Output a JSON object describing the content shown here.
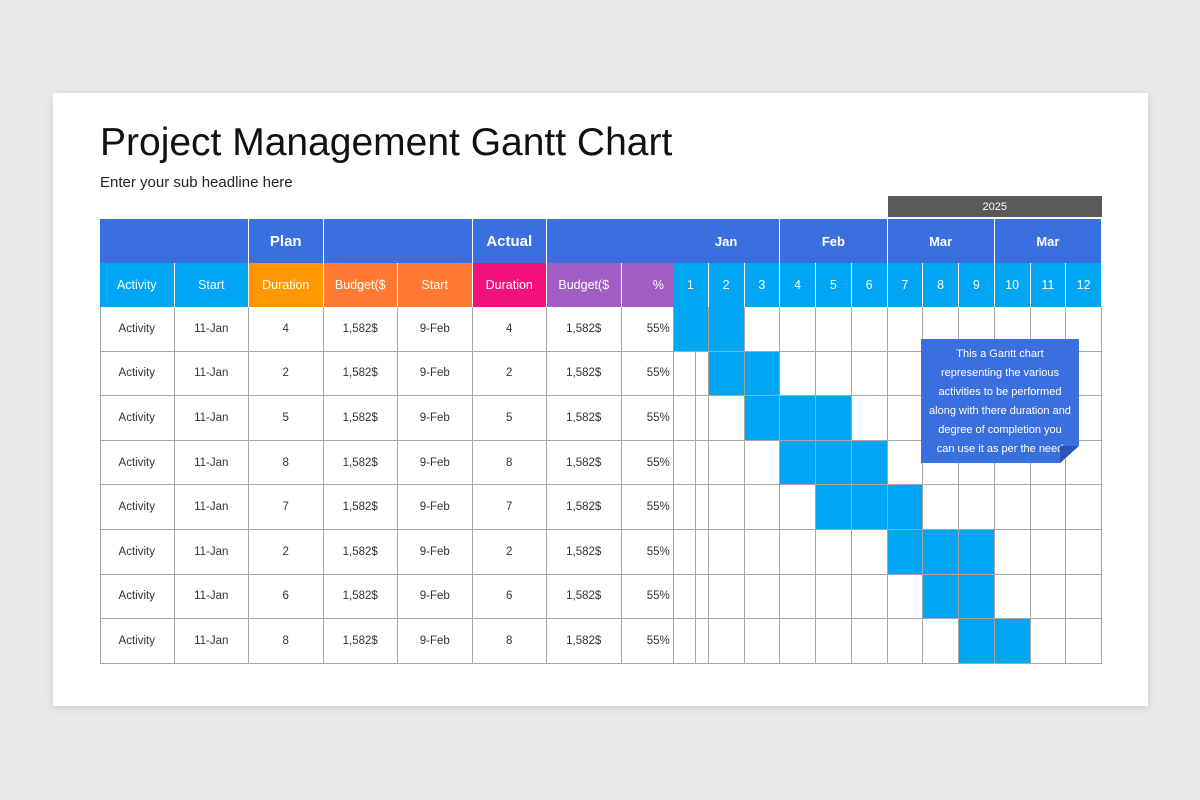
{
  "slide": {
    "title": "Project Management Gantt Chart",
    "subtitle": "Enter your sub headline here"
  },
  "table": {
    "group_headers": {
      "plan": "Plan",
      "actual": "Actual"
    },
    "columns": [
      {
        "label": "Activity",
        "color": "#00a5f3"
      },
      {
        "label": "Start",
        "color": "#00a5f3"
      },
      {
        "label": "Duration",
        "color": "#ff9800"
      },
      {
        "label": "Budget($",
        "color": "#ff7a33"
      },
      {
        "label": "Start",
        "color": "#ff7a33"
      },
      {
        "label": "Duration",
        "color": "#f2117c"
      },
      {
        "label": "Budget($",
        "color": "#a05dc2"
      },
      {
        "label": "%",
        "color": "#a05dc2"
      }
    ],
    "rows": [
      [
        "Activity",
        "11-Jan",
        "4",
        "1,582$",
        "9-Feb",
        "4",
        "1,582$",
        "55%"
      ],
      [
        "Activity",
        "11-Jan",
        "2",
        "1,582$",
        "9-Feb",
        "2",
        "1,582$",
        "55%"
      ],
      [
        "Activity",
        "11-Jan",
        "5",
        "1,582$",
        "9-Feb",
        "5",
        "1,582$",
        "55%"
      ],
      [
        "Activity",
        "11-Jan",
        "8",
        "1,582$",
        "9-Feb",
        "8",
        "1,582$",
        "55%"
      ],
      [
        "Activity",
        "11-Jan",
        "7",
        "1,582$",
        "9-Feb",
        "7",
        "1,582$",
        "55%"
      ],
      [
        "Activity",
        "11-Jan",
        "2",
        "1,582$",
        "9-Feb",
        "2",
        "1,582$",
        "55%"
      ],
      [
        "Activity",
        "11-Jan",
        "6",
        "1,582$",
        "9-Feb",
        "6",
        "1,582$",
        "55%"
      ],
      [
        "Activity",
        "11-Jan",
        "8",
        "1,582$",
        "9-Feb",
        "8",
        "1,582$",
        "55%"
      ]
    ]
  },
  "gantt": {
    "year": "2025",
    "months": [
      "Jan",
      "Feb",
      "Mar",
      "Mar"
    ],
    "weeks": [
      "1",
      "2",
      "3",
      "4",
      "5",
      "6",
      "7",
      "8",
      "9",
      "10",
      "11",
      "12"
    ],
    "tasks": [
      {
        "start_week": 1,
        "end_week": 2
      },
      {
        "start_week": 2,
        "end_week": 3
      },
      {
        "start_week": 3,
        "end_week": 5
      },
      {
        "start_week": 4,
        "end_week": 6
      },
      {
        "start_week": 5,
        "end_week": 7
      },
      {
        "start_week": 7,
        "end_week": 9
      },
      {
        "start_week": 8,
        "end_week": 9
      },
      {
        "start_week": 9,
        "end_week": 10
      }
    ],
    "note": "This a Gantt chart representing the various activities to be performed along with there duration and degree of completion you can use it as per the need"
  },
  "colors": {
    "header_blue": "#3a6fdf",
    "bar": "#00a5f3",
    "year_band": "#595959"
  }
}
